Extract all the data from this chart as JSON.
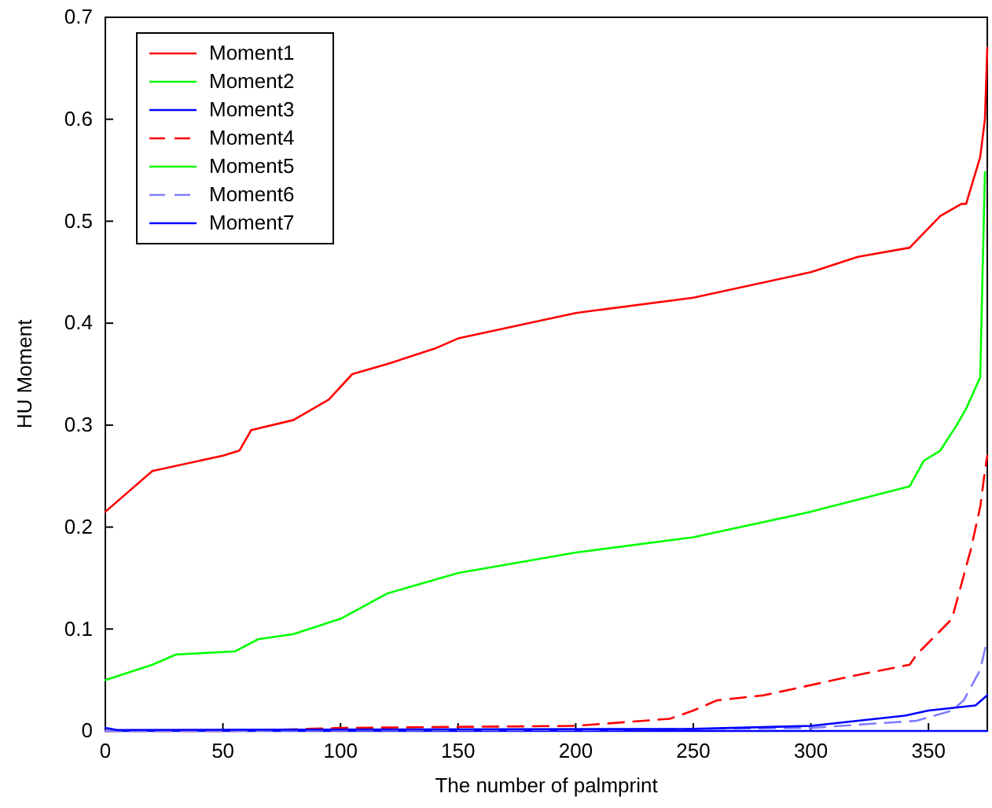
{
  "chart_data": {
    "type": "line",
    "xlabel": "The number of palmprint",
    "ylabel": "HU Moment",
    "xlim": [
      0,
      375
    ],
    "ylim": [
      0,
      0.7
    ],
    "xticks": [
      0,
      50,
      100,
      150,
      200,
      250,
      300,
      350
    ],
    "yticks": [
      0,
      0.1,
      0.2,
      0.3,
      0.4,
      0.5,
      0.6,
      0.7
    ],
    "grid": false,
    "legend": "top left",
    "marker": "none",
    "series": [
      {
        "name": "Moment1",
        "color": "#ff0000",
        "line_style": "solid",
        "x": [
          0,
          5,
          20,
          50,
          57,
          62,
          80,
          95,
          105,
          120,
          140,
          150,
          200,
          250,
          300,
          320,
          342,
          355,
          364,
          366,
          372,
          374,
          375
        ],
        "values": [
          0.215,
          0.225,
          0.255,
          0.27,
          0.275,
          0.295,
          0.305,
          0.325,
          0.35,
          0.36,
          0.375,
          0.385,
          0.41,
          0.425,
          0.45,
          0.465,
          0.474,
          0.505,
          0.517,
          0.517,
          0.563,
          0.6,
          0.67
        ]
      },
      {
        "name": "Moment2",
        "color": "#00ff00",
        "line_style": "solid",
        "x": [
          0,
          20,
          30,
          55,
          65,
          80,
          100,
          120,
          150,
          200,
          250,
          300,
          342,
          348,
          355,
          362,
          366,
          372,
          373,
          374
        ],
        "values": [
          0.05,
          0.065,
          0.075,
          0.078,
          0.09,
          0.095,
          0.11,
          0.135,
          0.155,
          0.175,
          0.19,
          0.215,
          0.24,
          0.265,
          0.275,
          0.3,
          0.316,
          0.347,
          0.45,
          0.548
        ]
      },
      {
        "name": "Moment3",
        "color": "#0000ff",
        "line_style": "solid",
        "x": [
          0,
          100,
          200,
          300,
          375
        ],
        "values": [
          0,
          0,
          0,
          0,
          0
        ]
      },
      {
        "name": "Moment4",
        "color": "#ff0000",
        "line_style": "dashed",
        "x": [
          0,
          55,
          100,
          200,
          240,
          250,
          260,
          280,
          300,
          320,
          342,
          345,
          360,
          368,
          372,
          374,
          375
        ],
        "values": [
          0,
          0,
          0.003,
          0.005,
          0.012,
          0.02,
          0.03,
          0.035,
          0.045,
          0.055,
          0.065,
          0.075,
          0.11,
          0.178,
          0.22,
          0.255,
          0.27
        ]
      },
      {
        "name": "Moment5",
        "color": "#00ff00",
        "line_style": "solid"
      },
      {
        "name": "Moment6",
        "color": "#7f7fff",
        "line_style": "dashed",
        "x": [
          0,
          200,
          300,
          345,
          360,
          365,
          372,
          375
        ],
        "values": [
          0,
          0.001,
          0.003,
          0.01,
          0.02,
          0.03,
          0.06,
          0.09
        ]
      },
      {
        "name": "Moment7",
        "color": "#0000ff",
        "line_style": "solid",
        "x": [
          0,
          5,
          250,
          300,
          340,
          350,
          370,
          375
        ],
        "values": [
          0.003,
          0.001,
          0.002,
          0.005,
          0.015,
          0.02,
          0.025,
          0.035
        ]
      }
    ]
  }
}
